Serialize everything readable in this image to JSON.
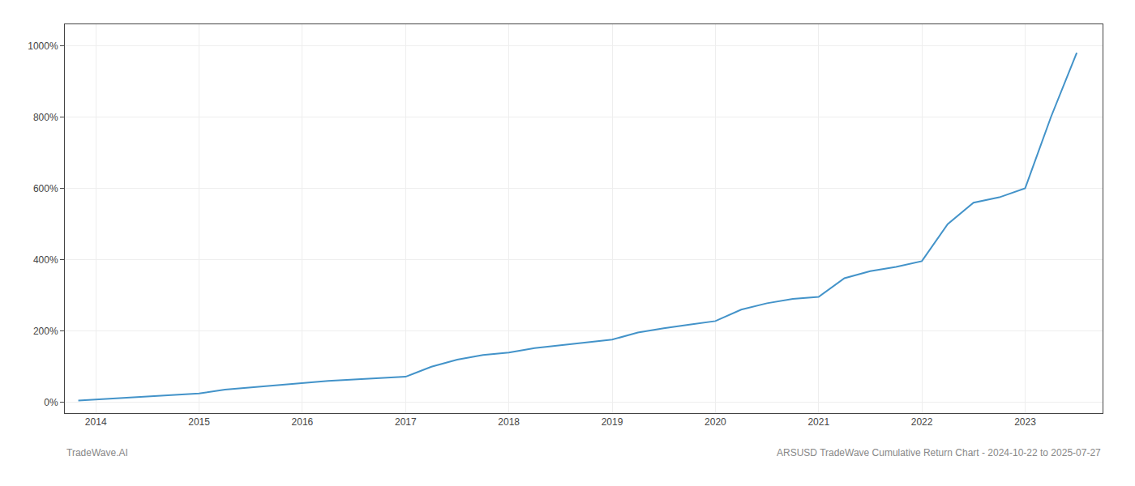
{
  "chart_data": {
    "type": "line",
    "title": "ARSUSD TradeWave Cumulative Return Chart - 2024-10-22 to 2025-07-27",
    "annotations": [
      "TradeWave.AI"
    ],
    "x": [
      2013.83,
      2014.0,
      2014.25,
      2014.5,
      2014.75,
      2015.0,
      2015.25,
      2015.5,
      2015.75,
      2016.0,
      2016.25,
      2016.5,
      2016.75,
      2017.0,
      2017.25,
      2017.5,
      2017.75,
      2018.0,
      2018.25,
      2018.5,
      2018.75,
      2019.0,
      2019.25,
      2019.5,
      2019.75,
      2020.0,
      2020.25,
      2020.5,
      2020.75,
      2021.0,
      2021.25,
      2021.5,
      2021.75,
      2022.0,
      2022.25,
      2022.5,
      2022.75,
      2023.0,
      2023.25,
      2023.5
    ],
    "values": [
      5,
      8,
      12,
      16,
      20,
      25,
      36,
      42,
      48,
      53,
      60,
      64,
      68,
      72,
      100,
      120,
      133,
      140,
      152,
      160,
      168,
      176,
      196,
      208,
      218,
      228,
      260,
      278,
      290,
      296,
      348,
      368,
      380,
      396,
      500,
      560,
      575,
      600,
      800,
      980
    ],
    "color": "#4393c9",
    "xlim": [
      2013.7,
      2023.75
    ],
    "xticks": [
      2014,
      2015,
      2016,
      2017,
      2018,
      2019,
      2020,
      2021,
      2022,
      2023
    ],
    "ylim": [
      -30,
      1060
    ],
    "yticks": [
      {
        "value": 0,
        "label": "0%"
      },
      {
        "value": 200,
        "label": "200%"
      },
      {
        "value": 400,
        "label": "400%"
      },
      {
        "value": 600,
        "label": "600%"
      },
      {
        "value": 800,
        "label": "800%"
      },
      {
        "value": 1000,
        "label": "1000%"
      }
    ],
    "grid": true
  }
}
